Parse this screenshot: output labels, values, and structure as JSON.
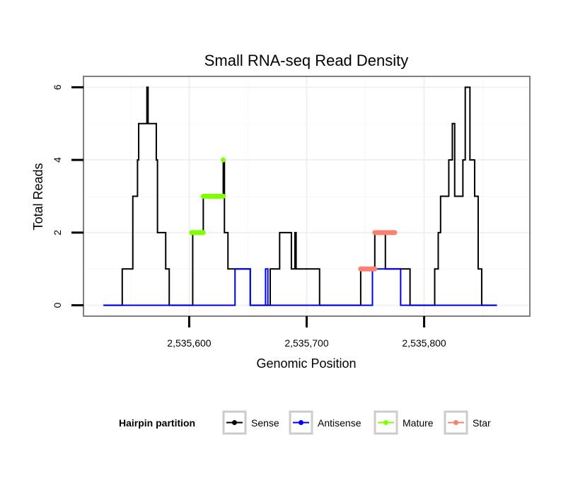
{
  "chart_data": {
    "type": "line",
    "title": "Small RNA-seq Read Density",
    "xlabel": "Genomic Position",
    "ylabel": "Total Reads",
    "xlim": [
      2535510,
      2535890
    ],
    "ylim": [
      -0.3,
      6.3
    ],
    "x_ticks": [
      2535600,
      2535700,
      2535800
    ],
    "x_tick_labels": [
      "2,535,600",
      "2,535,700",
      "2,535,800"
    ],
    "y_ticks": [
      0,
      2,
      4,
      6
    ],
    "y_tick_labels": [
      "0",
      "2",
      "4",
      "6"
    ],
    "legend": {
      "title": "Hairpin partition",
      "position": "bottom",
      "entries": [
        {
          "name": "Sense",
          "color": "#000000"
        },
        {
          "name": "Antisense",
          "color": "#0000ff"
        },
        {
          "name": "Mature",
          "color": "#7fff00"
        },
        {
          "name": "Star",
          "color": "#fa8072"
        }
      ]
    },
    "series": [
      {
        "name": "Sense",
        "color": "#000000",
        "style": "step-line",
        "points": [
          [
            2535527,
            0
          ],
          [
            2535543,
            0
          ],
          [
            2535543,
            1
          ],
          [
            2535552,
            1
          ],
          [
            2535552,
            3
          ],
          [
            2535556,
            3
          ],
          [
            2535556,
            4
          ],
          [
            2535557,
            4
          ],
          [
            2535557,
            5
          ],
          [
            2535564,
            5
          ],
          [
            2535564,
            6
          ],
          [
            2535565,
            6
          ],
          [
            2535565,
            5
          ],
          [
            2535572,
            5
          ],
          [
            2535572,
            4
          ],
          [
            2535573,
            4
          ],
          [
            2535573,
            2
          ],
          [
            2535580,
            2
          ],
          [
            2535580,
            1
          ],
          [
            2535583,
            1
          ],
          [
            2535583,
            0
          ],
          [
            2535603,
            0
          ],
          [
            2535603,
            2
          ],
          [
            2535612,
            2
          ],
          [
            2535612,
            3
          ],
          [
            2535629,
            3
          ],
          [
            2535629,
            4
          ],
          [
            2535630,
            4
          ],
          [
            2535630,
            2
          ],
          [
            2535633,
            2
          ],
          [
            2535633,
            1
          ],
          [
            2535652,
            1
          ],
          [
            2535652,
            0
          ],
          [
            2535669,
            0
          ],
          [
            2535669,
            1
          ],
          [
            2535677,
            1
          ],
          [
            2535677,
            2
          ],
          [
            2535687,
            2
          ],
          [
            2535687,
            1
          ],
          [
            2535690,
            1
          ],
          [
            2535690,
            2
          ],
          [
            2535691,
            2
          ],
          [
            2535691,
            1
          ],
          [
            2535711,
            1
          ],
          [
            2535711,
            0
          ],
          [
            2535746,
            0
          ],
          [
            2535746,
            1
          ],
          [
            2535758,
            1
          ],
          [
            2535758,
            2
          ],
          [
            2535767,
            2
          ],
          [
            2535767,
            1
          ],
          [
            2535788,
            1
          ],
          [
            2535788,
            0
          ],
          [
            2535809,
            0
          ],
          [
            2535809,
            1
          ],
          [
            2535812,
            1
          ],
          [
            2535812,
            2
          ],
          [
            2535814,
            2
          ],
          [
            2535814,
            3
          ],
          [
            2535821,
            3
          ],
          [
            2535821,
            4
          ],
          [
            2535824,
            4
          ],
          [
            2535824,
            5
          ],
          [
            2535826,
            5
          ],
          [
            2535826,
            3
          ],
          [
            2535833,
            3
          ],
          [
            2535833,
            4
          ],
          [
            2535835,
            4
          ],
          [
            2535835,
            6
          ],
          [
            2535839,
            6
          ],
          [
            2535839,
            4
          ],
          [
            2535843,
            4
          ],
          [
            2535843,
            3
          ],
          [
            2535846,
            3
          ],
          [
            2535846,
            1
          ],
          [
            2535849,
            1
          ],
          [
            2535849,
            0
          ],
          [
            2535862,
            0
          ]
        ]
      },
      {
        "name": "Antisense",
        "color": "#0000ff",
        "style": "step-line",
        "points": [
          [
            2535527,
            0
          ],
          [
            2535639,
            0
          ],
          [
            2535639,
            1
          ],
          [
            2535652,
            1
          ],
          [
            2535652,
            0
          ],
          [
            2535665,
            0
          ],
          [
            2535665,
            1
          ],
          [
            2535667,
            1
          ],
          [
            2535667,
            0
          ],
          [
            2535756,
            0
          ],
          [
            2535756,
            1
          ],
          [
            2535780,
            1
          ],
          [
            2535780,
            0
          ],
          [
            2535862,
            0
          ]
        ]
      },
      {
        "name": "Mature",
        "color": "#7fff00",
        "style": "thick-segments",
        "segments": [
          {
            "x_start": 2535602,
            "x_end": 2535612,
            "y": 2
          },
          {
            "x_start": 2535612,
            "x_end": 2535629,
            "y": 3
          },
          {
            "x_start": 2535629,
            "x_end": 2535629,
            "y": 4
          }
        ]
      },
      {
        "name": "Star",
        "color": "#fa8072",
        "style": "thick-segments",
        "segments": [
          {
            "x_start": 2535746,
            "x_end": 2535758,
            "y": 1
          },
          {
            "x_start": 2535758,
            "x_end": 2535775,
            "y": 2
          }
        ]
      }
    ]
  }
}
